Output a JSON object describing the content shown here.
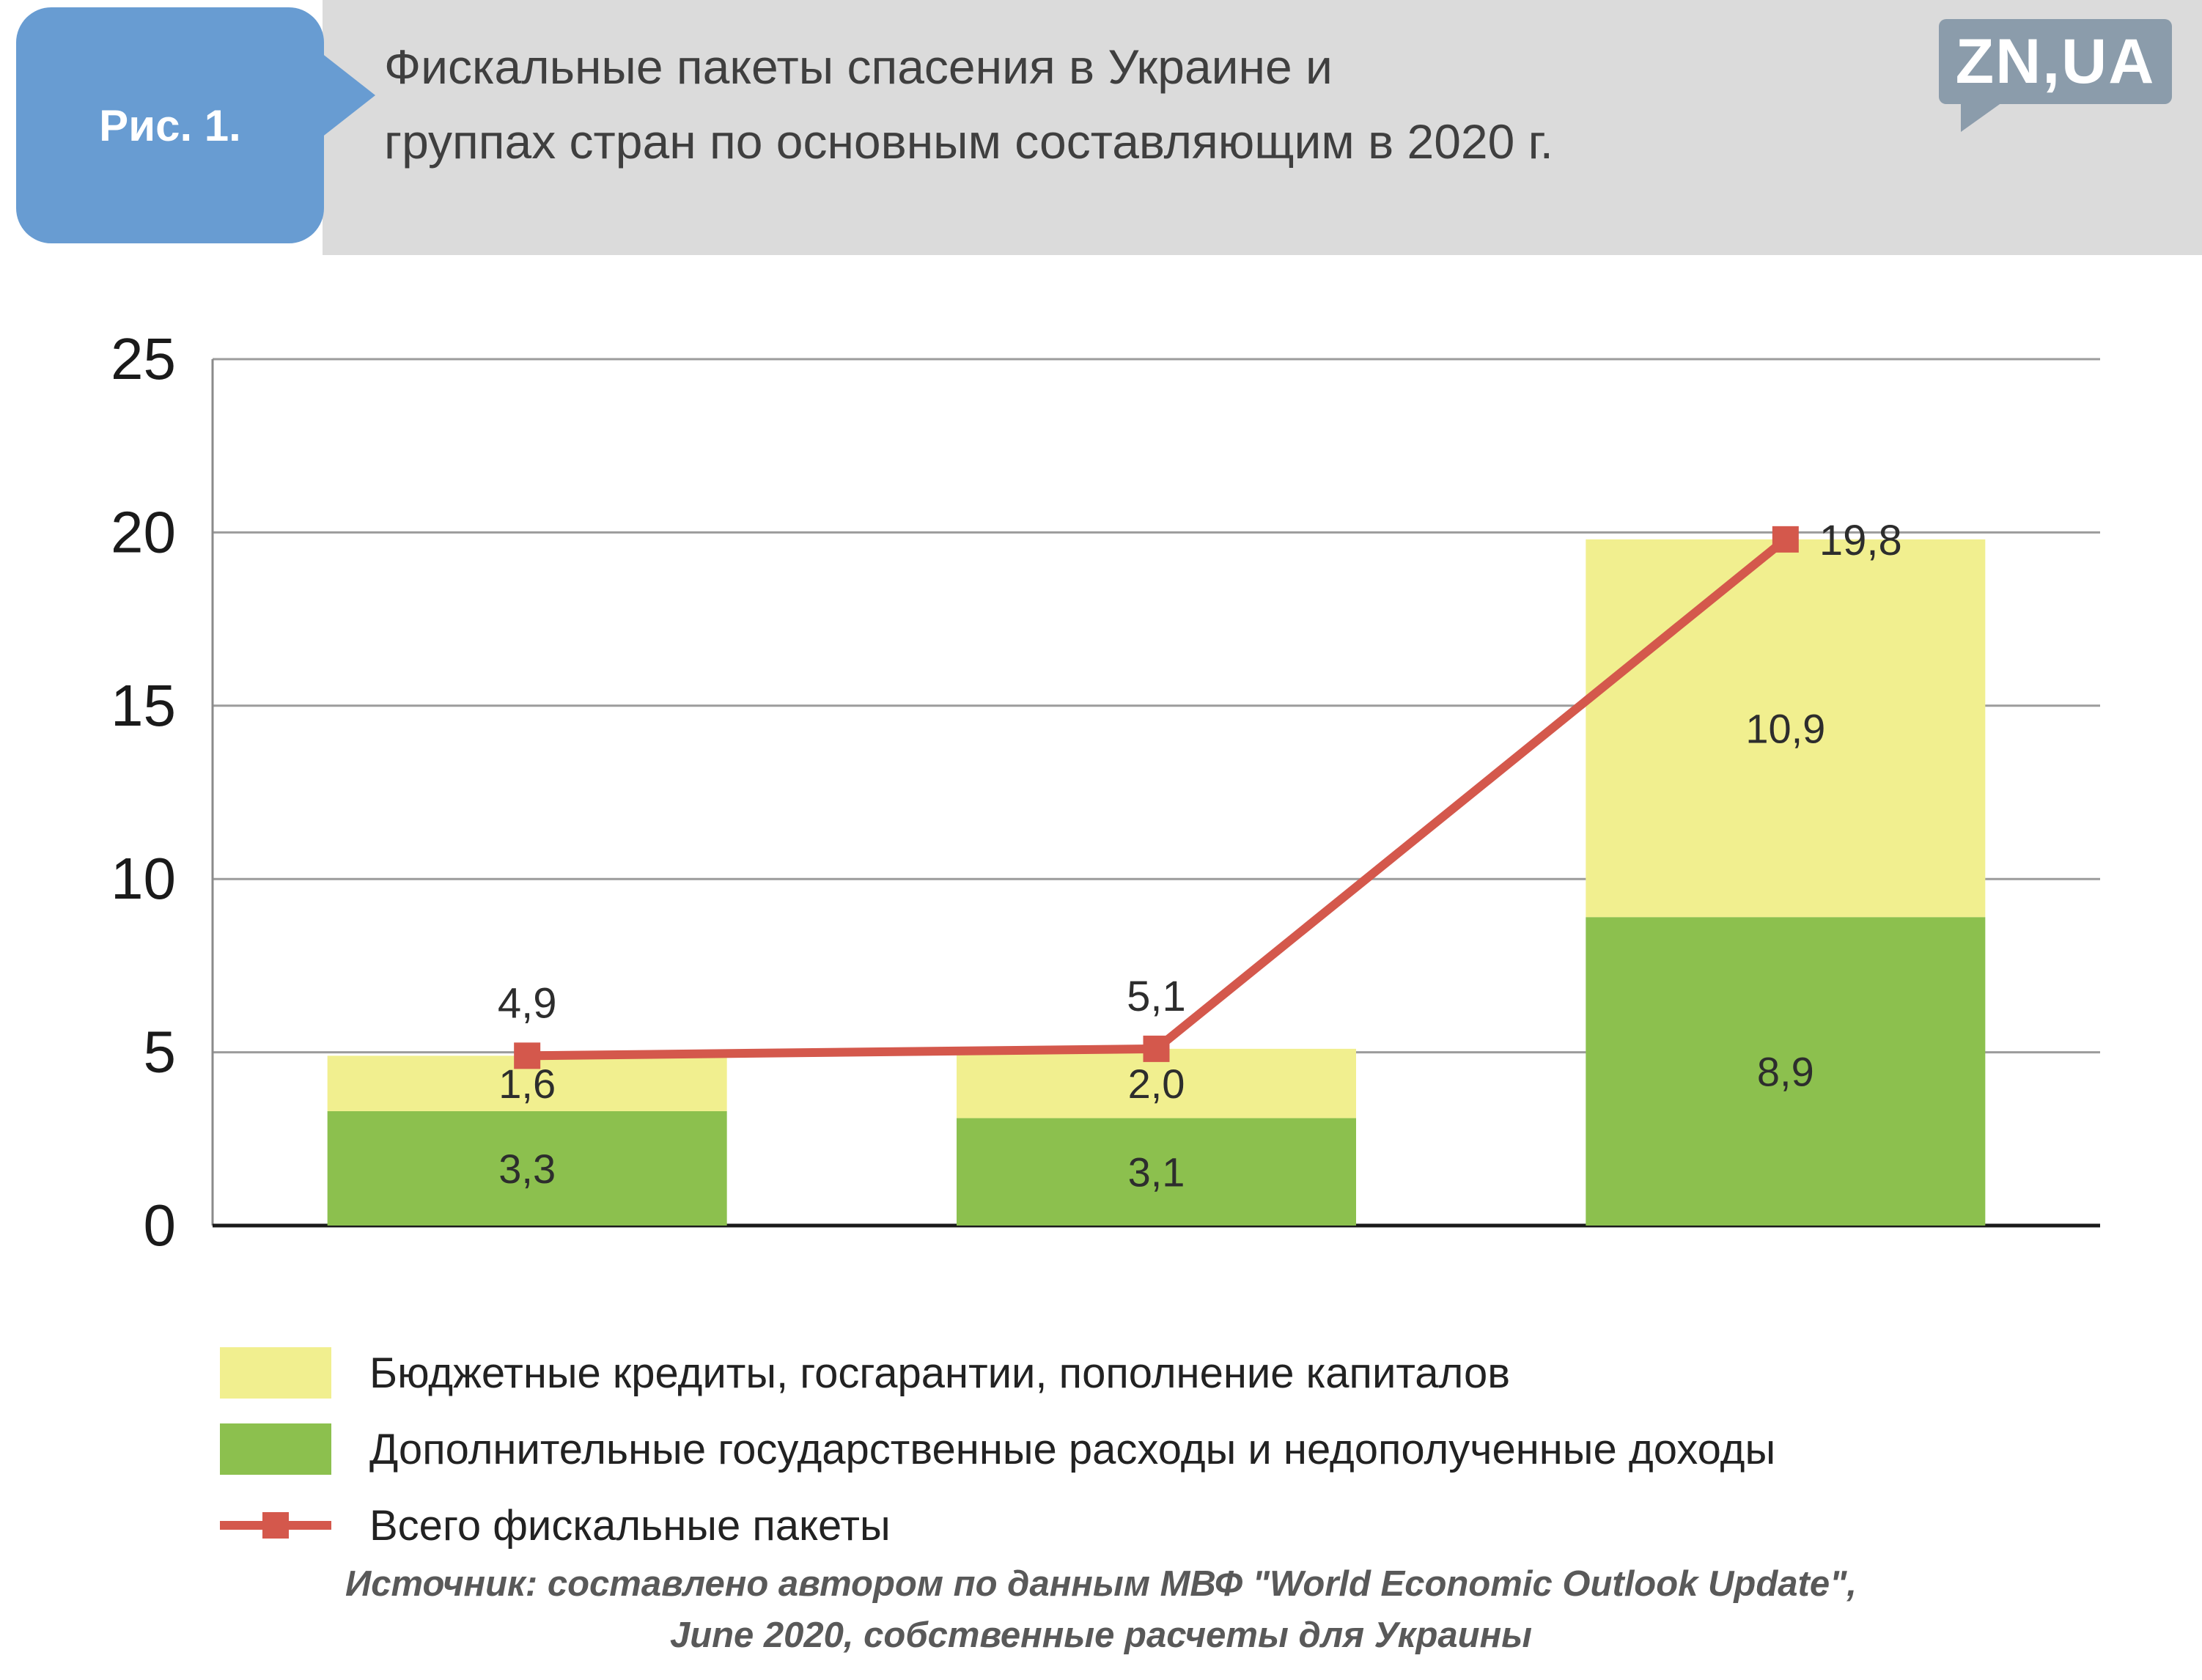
{
  "figure_label": "Рис. 1.",
  "title_line1": "Фискальные пакеты спасения в Украине и",
  "title_line2": "группах стран по основным составляющим в 2020 г.",
  "logo_text": "ZN,UA",
  "chart_data": {
    "type": "bar",
    "subtype": "stacked-bars-with-total-line",
    "categories": [
      "",
      "",
      ""
    ],
    "series": [
      {
        "name": "Дополнительные государственные расходы и недополученные доходы",
        "role": "bar-stack",
        "color": "#8CC04E",
        "values": [
          3.3,
          3.1,
          8.9
        ]
      },
      {
        "name": "Бюджетные кредиты, госгарантии, пополнение капиталов",
        "role": "bar-stack",
        "color": "#F1EF8F",
        "values": [
          1.6,
          2.0,
          10.9
        ]
      },
      {
        "name": "Всего фискальные пакеты",
        "role": "line",
        "color": "#D4584C",
        "values": [
          4.9,
          5.1,
          19.8
        ]
      }
    ],
    "ylim": [
      0,
      25
    ],
    "yticks": [
      0,
      5,
      10,
      15,
      20,
      25
    ],
    "grid": true,
    "legend_position": "bottom",
    "decimal_separator": ",",
    "data_labels": [
      "3,3",
      "1,6",
      "4,9",
      "3,1",
      "2,0",
      "5,1",
      "8,9",
      "10,9",
      "19,8"
    ]
  },
  "legend": {
    "items": [
      {
        "label": "Бюджетные кредиты, госгарантии, пополнение капиталов",
        "swatch": "yellow-box",
        "color": "#F1EF8F"
      },
      {
        "label": "Дополнительные государственные расходы и недополученные доходы",
        "swatch": "green-box",
        "color": "#8CC04E"
      },
      {
        "label": "Всего фискальные пакеты",
        "swatch": "red-line-with-marker",
        "color": "#D4584C"
      }
    ]
  },
  "source_line1": "Источник: составлено автором по данным МВФ \"World Economic Outlook Update\",",
  "source_line2": "June 2020, собственные расчеты для Украины",
  "colors": {
    "header_banner": "#DBDBDB",
    "figure_label_bg": "#689CD2",
    "logo_bg": "#8B9CAB",
    "grid": "#9C9C9C",
    "baseline": "#1a1a1a",
    "axis": "#8a8a8a",
    "tick_text": "#1a1a1a",
    "value_text": "#2d2d2d",
    "title_text": "#3F3F3F"
  }
}
